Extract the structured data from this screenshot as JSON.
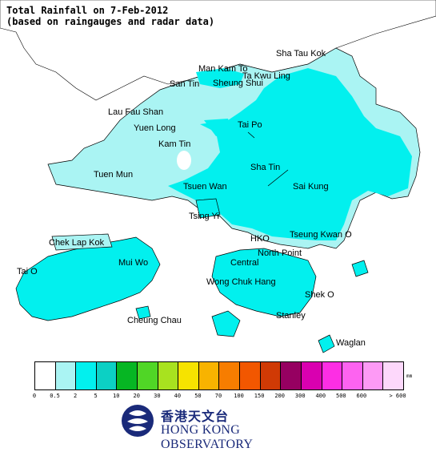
{
  "title": {
    "line1": "Total Rainfall on 7-Feb-2012",
    "line2": "(based on raingauges and radar data)"
  },
  "colors": {
    "sea": "#ffffff",
    "land_light": "#aaf4f3",
    "land_rain": "#02f0ee",
    "coast": "#000000"
  },
  "places": [
    {
      "id": "sha-tau-kok",
      "name": "Sha Tau Kok"
    },
    {
      "id": "man-kam-to",
      "name": "Man Kam To"
    },
    {
      "id": "ta-kwu-ling",
      "name": "Ta Kwu Ling"
    },
    {
      "id": "san-tin",
      "name": "San Tin"
    },
    {
      "id": "sheung-shui",
      "name": "Sheung Shui"
    },
    {
      "id": "lau-fau-shan",
      "name": "Lau Fau Shan"
    },
    {
      "id": "yuen-long",
      "name": "Yuen Long"
    },
    {
      "id": "tai-po",
      "name": "Tai Po"
    },
    {
      "id": "kam-tin",
      "name": "Kam Tin"
    },
    {
      "id": "tuen-mun",
      "name": "Tuen Mun"
    },
    {
      "id": "sha-tin",
      "name": "Sha Tin"
    },
    {
      "id": "tsuen-wan",
      "name": "Tsuen Wan"
    },
    {
      "id": "sai-kung",
      "name": "Sai Kung"
    },
    {
      "id": "tsing-yi",
      "name": "Tsing Yi"
    },
    {
      "id": "chek-lap-kok",
      "name": "Chek Lap Kok"
    },
    {
      "id": "hko",
      "name": "HKO"
    },
    {
      "id": "tseung-kwan-o",
      "name": "Tseung Kwan O"
    },
    {
      "id": "north-point",
      "name": "North Point"
    },
    {
      "id": "mui-wo",
      "name": "Mui Wo"
    },
    {
      "id": "central",
      "name": "Central"
    },
    {
      "id": "tai-o",
      "name": "Tai O"
    },
    {
      "id": "wong-chuk-hang",
      "name": "Wong Chuk Hang"
    },
    {
      "id": "shek-o",
      "name": "Shek O"
    },
    {
      "id": "cheung-chau",
      "name": "Cheung Chau"
    },
    {
      "id": "stanley",
      "name": "Stanley"
    },
    {
      "id": "waglan",
      "name": "Waglan"
    }
  ],
  "legend": {
    "unit": "mm",
    "ticks": [
      "0",
      "0.5",
      "2",
      "5",
      "10",
      "20",
      "30",
      "40",
      "50",
      "70",
      "100",
      "150",
      "200",
      "300",
      "400",
      "500",
      "600",
      "> 600"
    ],
    "bins": [
      {
        "color": "#ffffff"
      },
      {
        "color": "#aaf4f3"
      },
      {
        "color": "#02f0ee"
      },
      {
        "color": "#0cd0c4"
      },
      {
        "color": "#06b623"
      },
      {
        "color": "#50d626"
      },
      {
        "color": "#a8e21f"
      },
      {
        "color": "#f6e300"
      },
      {
        "color": "#f8b300"
      },
      {
        "color": "#f77d00"
      },
      {
        "color": "#f25700"
      },
      {
        "color": "#d03a05"
      },
      {
        "color": "#960061"
      },
      {
        "color": "#d900b0"
      },
      {
        "color": "#fd2ee4"
      },
      {
        "color": "#fd63f0"
      },
      {
        "color": "#fd9af5"
      },
      {
        "color": "#fdd8fb"
      }
    ]
  },
  "logo": {
    "chinese": "香港天文台",
    "english": "HONG KONG OBSERVATORY"
  }
}
